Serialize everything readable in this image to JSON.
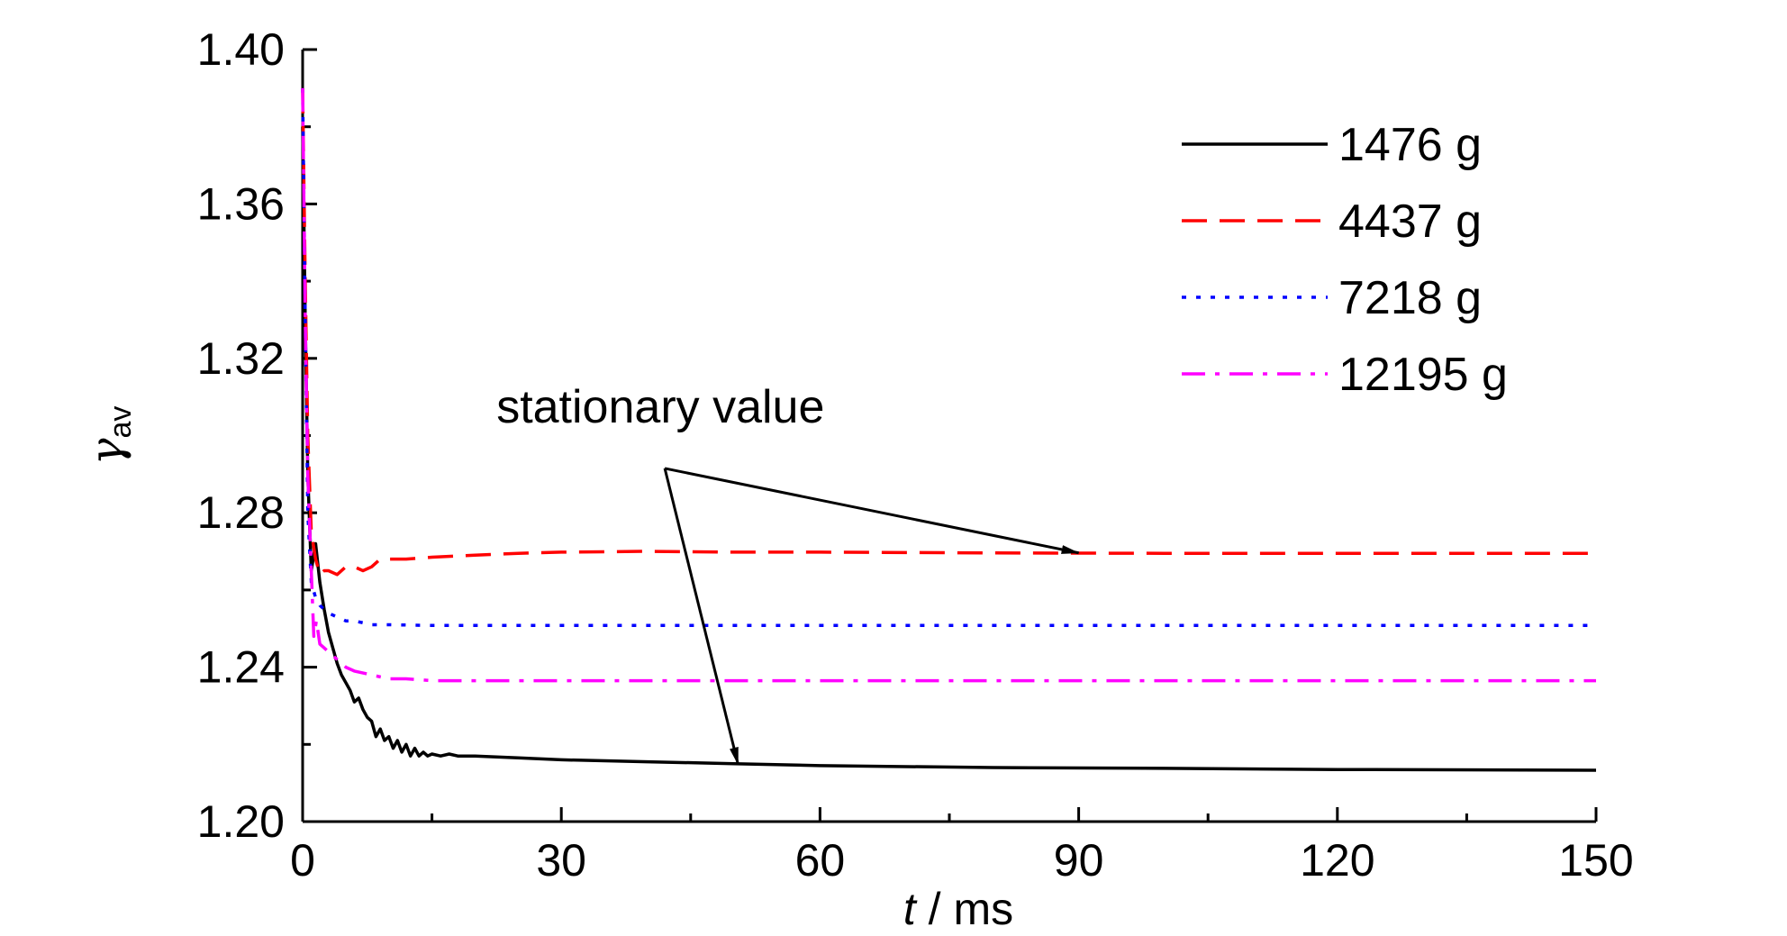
{
  "chart_data": {
    "type": "line",
    "xlabel_var": "t",
    "xlabel_unit": " / ms",
    "ylabel_var": "γ",
    "ylabel_sub": "av",
    "xlim": [
      0,
      150
    ],
    "ylim": [
      1.2,
      1.4
    ],
    "xticks": [
      0,
      30,
      60,
      90,
      120,
      150
    ],
    "xtick_labels": [
      "0",
      "30",
      "60",
      "90",
      "120",
      "150"
    ],
    "yticks": [
      1.2,
      1.24,
      1.28,
      1.32,
      1.36,
      1.4
    ],
    "ytick_labels": [
      "1.20",
      "1.24",
      "1.28",
      "1.32",
      "1.36",
      "1.40"
    ],
    "grid": false,
    "legend_position": "top-right",
    "series": [
      {
        "name": "1476 g",
        "color": "#000000",
        "dash": "solid",
        "x": [
          0,
          0.3,
          0.6,
          1.0,
          1.5,
          2.0,
          2.5,
          3.0,
          3.5,
          4.0,
          4.5,
          5.0,
          5.5,
          6.0,
          6.5,
          7.0,
          7.5,
          8.0,
          8.5,
          9.0,
          9.5,
          10.0,
          10.5,
          11.0,
          11.5,
          12.0,
          12.5,
          13.0,
          13.5,
          14.0,
          14.5,
          15.0,
          16.0,
          17.0,
          18.0,
          20.0,
          25.0,
          30.0,
          40.0,
          50.0,
          60.0,
          80.0,
          100.0,
          120.0,
          150.0
        ],
        "y": [
          1.38,
          1.33,
          1.29,
          1.265,
          1.272,
          1.262,
          1.255,
          1.249,
          1.245,
          1.241,
          1.238,
          1.236,
          1.234,
          1.231,
          1.232,
          1.229,
          1.227,
          1.226,
          1.222,
          1.224,
          1.221,
          1.222,
          1.219,
          1.221,
          1.218,
          1.22,
          1.217,
          1.219,
          1.217,
          1.218,
          1.217,
          1.2175,
          1.217,
          1.2175,
          1.217,
          1.217,
          1.2165,
          1.216,
          1.2155,
          1.215,
          1.2145,
          1.214,
          1.2138,
          1.2135,
          1.2133
        ]
      },
      {
        "name": "4437 g",
        "color": "#ff0000",
        "dash": "dashed",
        "x": [
          0,
          0.3,
          0.6,
          1.0,
          1.5,
          2.0,
          2.5,
          3.0,
          4.0,
          5.0,
          6.0,
          7.0,
          8.0,
          9.0,
          10.0,
          12.0,
          15.0,
          20.0,
          25.0,
          30.0,
          40.0,
          50.0,
          60.0,
          80.0,
          100.0,
          120.0,
          150.0
        ],
        "y": [
          1.39,
          1.34,
          1.3,
          1.275,
          1.268,
          1.264,
          1.265,
          1.265,
          1.264,
          1.266,
          1.266,
          1.265,
          1.266,
          1.268,
          1.268,
          1.268,
          1.2685,
          1.269,
          1.2695,
          1.2698,
          1.27,
          1.2698,
          1.2698,
          1.2696,
          1.2695,
          1.2695,
          1.2695
        ]
      },
      {
        "name": "7218 g",
        "color": "#0000ff",
        "dash": "dotted",
        "x": [
          0,
          0.3,
          0.6,
          1.0,
          1.5,
          2.0,
          2.5,
          3.0,
          4.0,
          5.0,
          6.0,
          8.0,
          10.0,
          15.0,
          20.0,
          30.0,
          50.0,
          80.0,
          100.0,
          150.0
        ],
        "y": [
          1.39,
          1.33,
          1.28,
          1.262,
          1.258,
          1.256,
          1.255,
          1.254,
          1.253,
          1.252,
          1.252,
          1.251,
          1.251,
          1.2508,
          1.2508,
          1.2508,
          1.2508,
          1.2508,
          1.2508,
          1.2508
        ]
      },
      {
        "name": "12195 g",
        "color": "#ff00ff",
        "dash": "dashdot",
        "x": [
          0,
          0.3,
          0.6,
          1.0,
          1.3,
          1.6,
          2.0,
          2.5,
          3.0,
          4.0,
          5.0,
          6.0,
          8.0,
          10.0,
          12.0,
          15.0,
          20.0,
          30.0,
          50.0,
          80.0,
          100.0,
          150.0
        ],
        "y": [
          1.39,
          1.33,
          1.29,
          1.265,
          1.248,
          1.252,
          1.246,
          1.245,
          1.244,
          1.242,
          1.24,
          1.239,
          1.238,
          1.237,
          1.237,
          1.2365,
          1.2365,
          1.2365,
          1.2365,
          1.2365,
          1.2365,
          1.2365
        ]
      }
    ],
    "annotation": {
      "text": "stationary value",
      "tail": [
        42,
        1.2915
      ],
      "heads": [
        [
          90,
          1.2696
        ],
        [
          50.5,
          1.2148
        ]
      ]
    }
  }
}
